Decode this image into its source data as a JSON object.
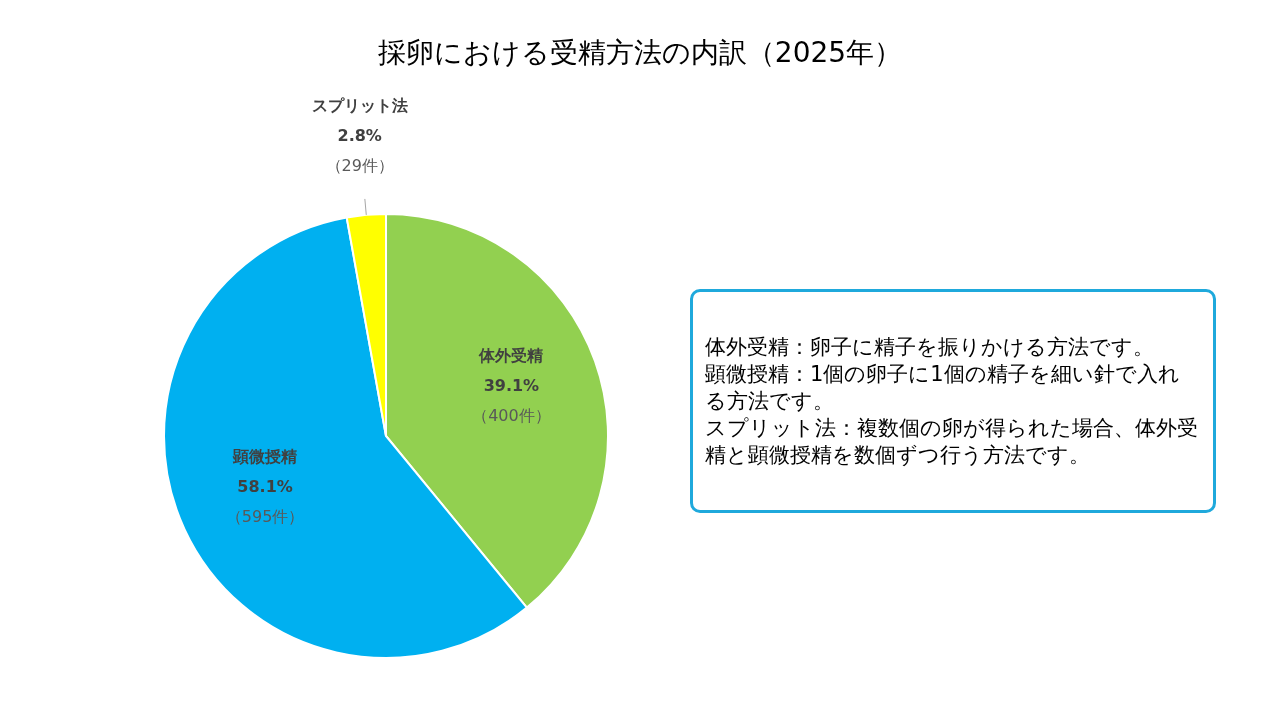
{
  "chart_data": {
    "type": "pie",
    "title": "採卵における受精方法の内訳（2025年）",
    "categories": [
      "体外受精",
      "顕微授精",
      "スプリット法"
    ],
    "values": [
      400,
      595,
      29
    ],
    "colors": [
      "#92d050",
      "#00b0f0",
      "#ffff00"
    ],
    "value_labels": [
      "39.1%\n（400件）",
      "58.1%\n（595件）",
      "2.8%\n（29件）"
    ],
    "legend": false,
    "annotations": [
      "体外受精：卵子に精子を振りかける方法です。",
      "顕微授精：1個の卵子に1個の精子を細い針で入れる方法です。",
      "スプリット法：複数個の卵が得られた場合、体外受精と顕微授精を数個ずつ行う方法です。"
    ]
  }
}
